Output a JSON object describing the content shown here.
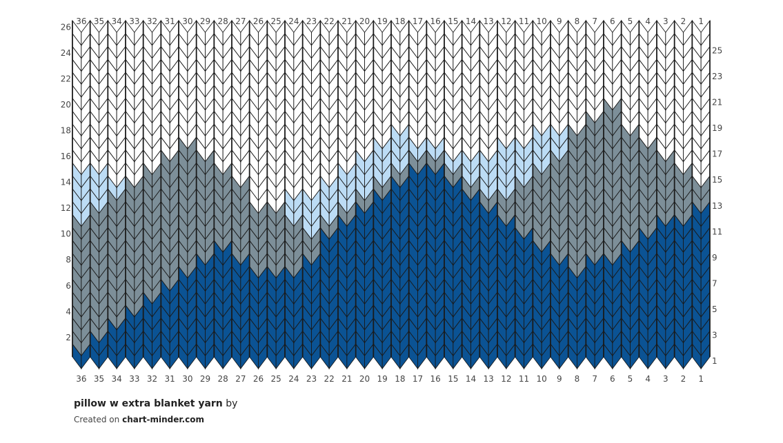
{
  "colors": {
    "dark_blue": "#0b5394",
    "gray": "#7d8f99",
    "light_blue": "#bcdcf5",
    "white": "#ffffff",
    "stroke": "#1a1a1a"
  },
  "chart": {
    "stitches": 36,
    "rows": 26,
    "column_numbers": [
      "36",
      "35",
      "34",
      "33",
      "32",
      "31",
      "30",
      "29",
      "28",
      "27",
      "26",
      "25",
      "24",
      "23",
      "22",
      "21",
      "20",
      "19",
      "18",
      "17",
      "16",
      "15",
      "14",
      "13",
      "12",
      "11",
      "10",
      "9",
      "8",
      "7",
      "6",
      "5",
      "4",
      "3",
      "2",
      "1"
    ],
    "left_row_numbers": [
      "2",
      "4",
      "6",
      "8",
      "10",
      "12",
      "14",
      "16",
      "18",
      "20",
      "22",
      "24",
      "26"
    ],
    "right_row_numbers": [
      "1",
      "3",
      "5",
      "7",
      "9",
      "11",
      "13",
      "15",
      "17",
      "19",
      "21",
      "23",
      "25"
    ],
    "dark_blue_top": [
      1,
      2,
      3,
      4,
      5,
      6,
      7,
      8,
      9,
      8,
      7,
      7,
      7,
      8,
      10,
      11,
      12,
      13,
      14,
      15,
      15,
      14,
      13,
      12,
      11,
      10,
      9,
      8,
      7,
      8,
      8,
      9,
      10,
      11,
      11,
      12
    ],
    "gray_top": [
      11,
      12,
      13,
      14,
      15,
      16,
      17,
      16,
      15,
      14,
      12,
      12,
      11,
      10,
      11,
      12,
      13,
      14,
      15,
      16,
      16,
      15,
      14,
      13,
      13,
      14,
      15,
      16,
      18,
      19,
      20,
      18,
      17,
      16,
      15,
      14
    ],
    "light_blue_top": [
      15,
      15,
      14,
      14,
      14,
      14,
      14,
      14,
      14,
      14,
      12,
      12,
      13,
      13,
      14,
      15,
      16,
      17,
      18,
      17,
      17,
      16,
      16,
      16,
      17,
      17,
      18,
      18,
      18,
      18,
      18,
      17,
      16,
      15,
      15,
      14
    ]
  },
  "footer": {
    "title": "pillow w extra blanket yarn",
    "by": "by",
    "created_prefix": "Created on",
    "site": "chart-minder.com"
  }
}
